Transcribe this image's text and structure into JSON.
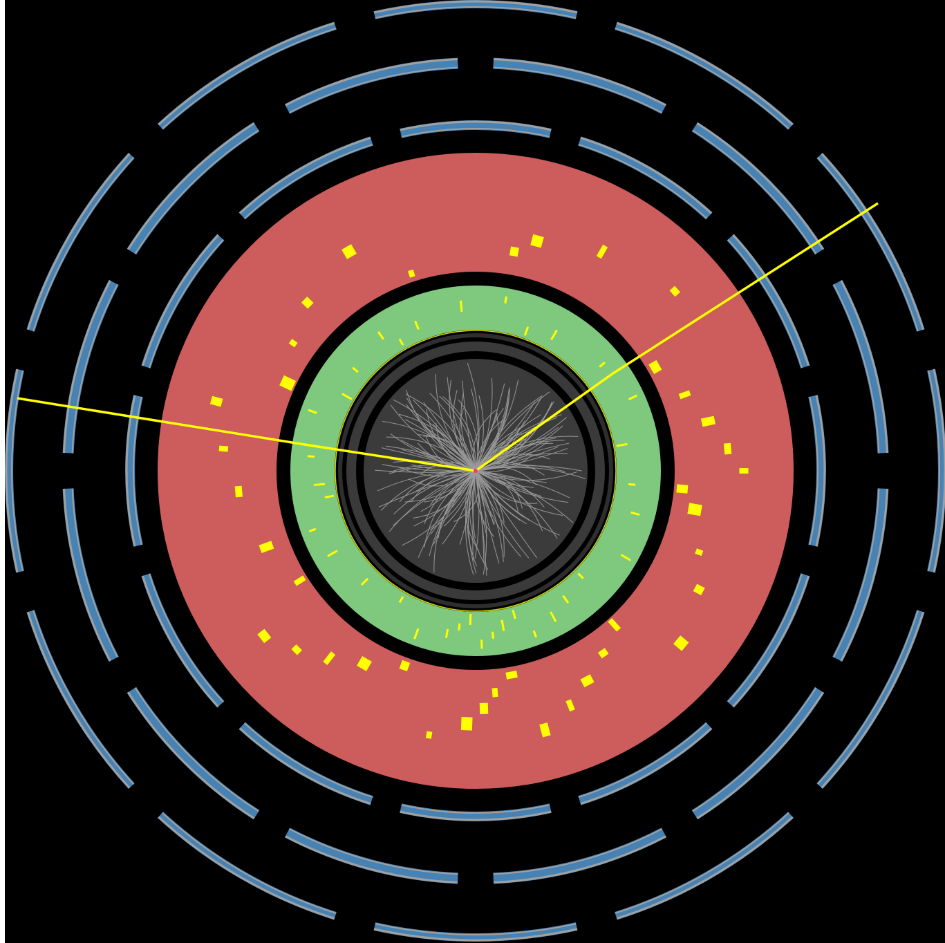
{
  "scene": {
    "subject": "particle-detector-event-display",
    "colors": {
      "background": "#000000",
      "page": "#ffffff",
      "calo_outer": "#cd5c5c",
      "calo_inner": "#7fc97f",
      "tracker_disc": "#3c3c3c",
      "track_lines": "#9a9a9a",
      "hits": "#ffff00",
      "muon_chamber_blue": "#4682b4",
      "muon_chamber_grey": "#a0a0a0",
      "vertex": "#ff3366"
    },
    "icons": {
      "muon_tracks": "yellow-line",
      "energy_deposits": "yellow-rectangle",
      "muon_chambers": "blue-grey-arc-segment",
      "vertex": "red-dot"
    }
  }
}
